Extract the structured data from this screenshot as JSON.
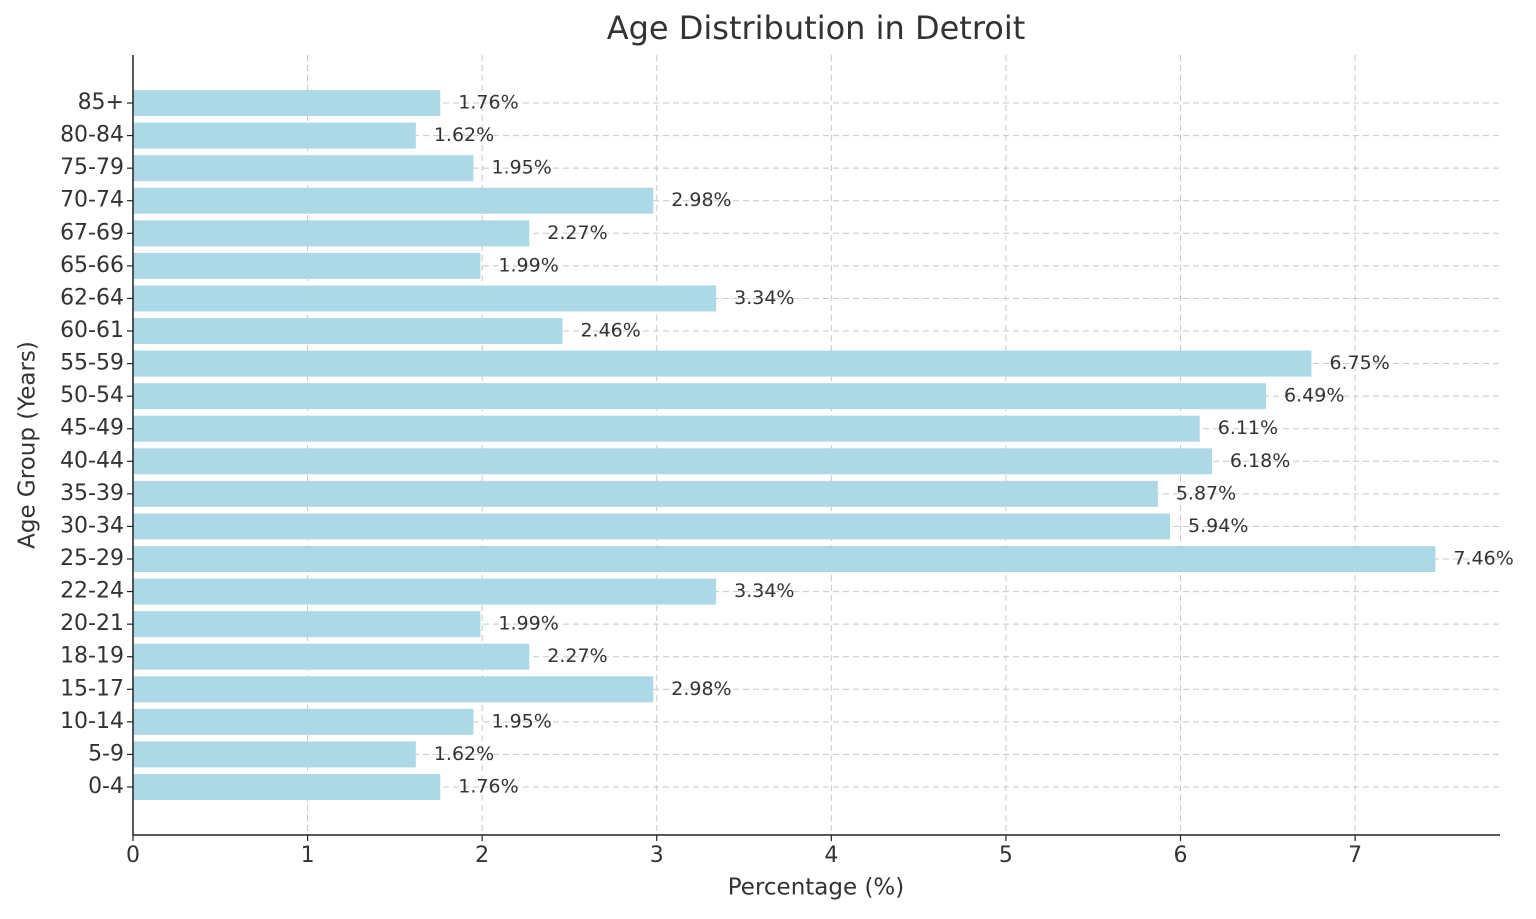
{
  "chart_data": {
    "type": "barh",
    "title": "Age Distribution in Detroit",
    "x_label": "Percentage (%)",
    "y_label": "Age Group (Years)",
    "categories": [
      "0-4",
      "5-9",
      "10-14",
      "15-17",
      "18-19",
      "20-21",
      "22-24",
      "25-29",
      "30-34",
      "35-39",
      "40-44",
      "45-49",
      "50-54",
      "55-59",
      "60-61",
      "62-64",
      "65-66",
      "67-69",
      "70-74",
      "75-79",
      "80-84",
      "85+"
    ],
    "values": [
      1.76,
      1.62,
      1.95,
      2.98,
      2.27,
      1.99,
      3.34,
      7.46,
      5.94,
      5.87,
      6.18,
      6.11,
      6.49,
      6.75,
      2.46,
      3.34,
      1.99,
      2.27,
      2.98,
      1.95,
      1.62,
      1.76
    ],
    "value_labels": [
      "1.76%",
      "1.62%",
      "1.95%",
      "2.98%",
      "2.27%",
      "1.99%",
      "3.34%",
      "7.46%",
      "5.94%",
      "5.87%",
      "6.18%",
      "6.11%",
      "6.49%",
      "6.75%",
      "2.46%",
      "3.34%",
      "1.99%",
      "2.27%",
      "2.98%",
      "1.95%",
      "1.62%",
      "1.76%"
    ],
    "color": "#add8e6",
    "xlim": [
      0,
      7.83
    ],
    "xticks": [
      0,
      1,
      2,
      3,
      4,
      5,
      6,
      7
    ],
    "grid": true
  }
}
